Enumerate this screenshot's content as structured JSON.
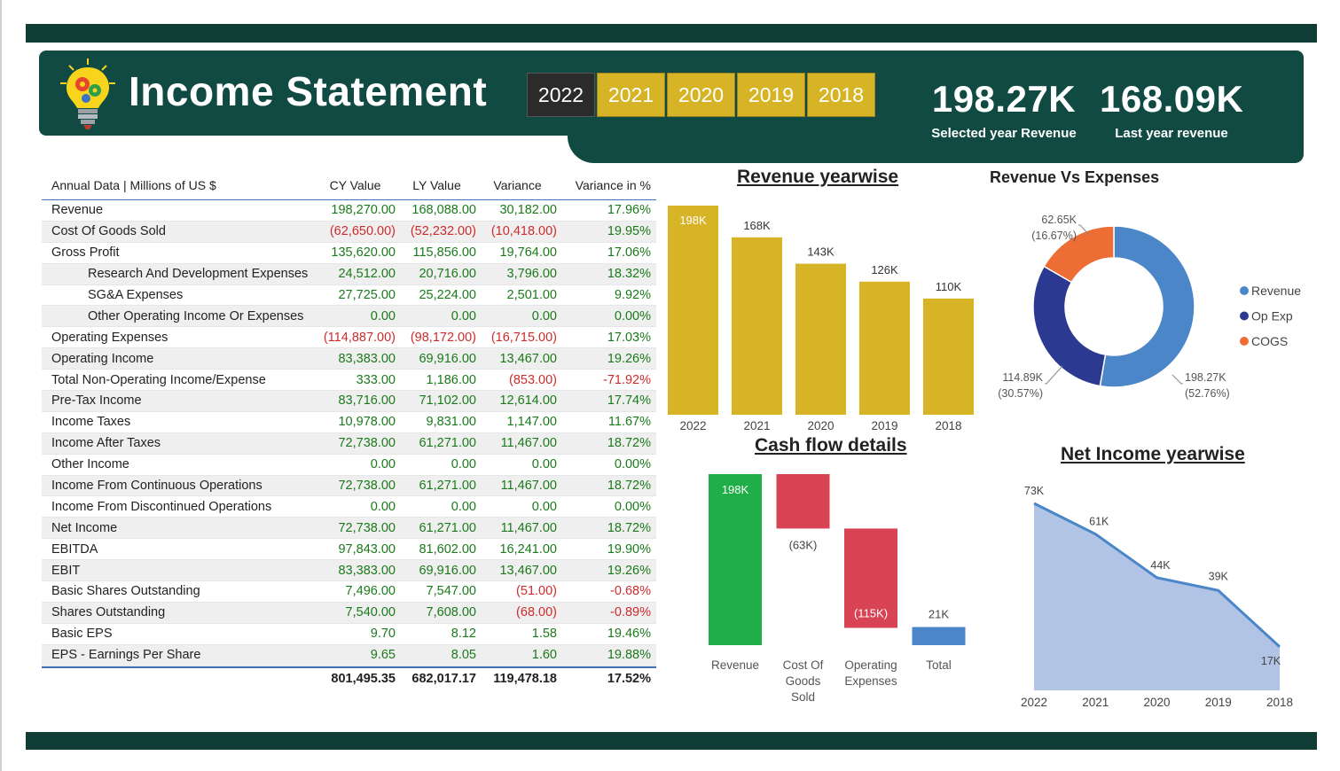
{
  "header": {
    "title": "Income Statement",
    "years": [
      "2022",
      "2021",
      "2020",
      "2019",
      "2018"
    ],
    "selected_year": "2022",
    "kpis": [
      {
        "value": "198.27K",
        "label": "Selected year Revenue"
      },
      {
        "value": "168.09K",
        "label": "Last year revenue"
      }
    ]
  },
  "table": {
    "headers": [
      "Annual Data | Millions of US $",
      "CY Value",
      "LY Value",
      "Variance",
      "Variance in %"
    ],
    "rows": [
      {
        "name": "Revenue",
        "indent": false,
        "cy": "198,270.00",
        "ly": "168,088.00",
        "var": "30,182.00",
        "pct": "17.96%"
      },
      {
        "name": "Cost Of Goods Sold",
        "indent": false,
        "cy": "(62,650.00)",
        "ly": "(52,232.00)",
        "var": "(10,418.00)",
        "pct": "19.95%"
      },
      {
        "name": "Gross Profit",
        "indent": false,
        "cy": "135,620.00",
        "ly": "115,856.00",
        "var": "19,764.00",
        "pct": "17.06%"
      },
      {
        "name": "Research And Development Expenses",
        "indent": true,
        "cy": "24,512.00",
        "ly": "20,716.00",
        "var": "3,796.00",
        "pct": "18.32%"
      },
      {
        "name": "SG&A Expenses",
        "indent": true,
        "cy": "27,725.00",
        "ly": "25,224.00",
        "var": "2,501.00",
        "pct": "9.92%"
      },
      {
        "name": "Other Operating Income Or Expenses",
        "indent": true,
        "cy": "0.00",
        "ly": "0.00",
        "var": "0.00",
        "pct": "0.00%"
      },
      {
        "name": "Operating Expenses",
        "indent": false,
        "cy": "(114,887.00)",
        "ly": "(98,172.00)",
        "var": "(16,715.00)",
        "pct": "17.03%"
      },
      {
        "name": "Operating Income",
        "indent": false,
        "cy": "83,383.00",
        "ly": "69,916.00",
        "var": "13,467.00",
        "pct": "19.26%"
      },
      {
        "name": "Total Non-Operating Income/Expense",
        "indent": false,
        "cy": "333.00",
        "ly": "1,186.00",
        "var": "(853.00)",
        "pct": "-71.92%"
      },
      {
        "name": "Pre-Tax Income",
        "indent": false,
        "cy": "83,716.00",
        "ly": "71,102.00",
        "var": "12,614.00",
        "pct": "17.74%"
      },
      {
        "name": "Income Taxes",
        "indent": false,
        "cy": "10,978.00",
        "ly": "9,831.00",
        "var": "1,147.00",
        "pct": "11.67%"
      },
      {
        "name": "Income After Taxes",
        "indent": false,
        "cy": "72,738.00",
        "ly": "61,271.00",
        "var": "11,467.00",
        "pct": "18.72%"
      },
      {
        "name": "Other Income",
        "indent": false,
        "cy": "0.00",
        "ly": "0.00",
        "var": "0.00",
        "pct": "0.00%"
      },
      {
        "name": "Income From Continuous Operations",
        "indent": false,
        "cy": "72,738.00",
        "ly": "61,271.00",
        "var": "11,467.00",
        "pct": "18.72%"
      },
      {
        "name": "Income From Discontinued Operations",
        "indent": false,
        "cy": "0.00",
        "ly": "0.00",
        "var": "0.00",
        "pct": "0.00%"
      },
      {
        "name": "Net Income",
        "indent": false,
        "cy": "72,738.00",
        "ly": "61,271.00",
        "var": "11,467.00",
        "pct": "18.72%"
      },
      {
        "name": "EBITDA",
        "indent": false,
        "cy": "97,843.00",
        "ly": "81,602.00",
        "var": "16,241.00",
        "pct": "19.90%"
      },
      {
        "name": "EBIT",
        "indent": false,
        "cy": "83,383.00",
        "ly": "69,916.00",
        "var": "13,467.00",
        "pct": "19.26%"
      },
      {
        "name": "Basic Shares Outstanding",
        "indent": false,
        "cy": "7,496.00",
        "ly": "7,547.00",
        "var": "(51.00)",
        "pct": "-0.68%"
      },
      {
        "name": "Shares Outstanding",
        "indent": false,
        "cy": "7,540.00",
        "ly": "7,608.00",
        "var": "(68.00)",
        "pct": "-0.89%"
      },
      {
        "name": "Basic EPS",
        "indent": false,
        "cy": "9.70",
        "ly": "8.12",
        "var": "1.58",
        "pct": "19.46%"
      },
      {
        "name": "EPS - Earnings Per Share",
        "indent": false,
        "cy": "9.65",
        "ly": "8.05",
        "var": "1.60",
        "pct": "19.88%"
      }
    ],
    "totals": {
      "cy": "801,495.35",
      "ly": "682,017.17",
      "var": "119,478.18",
      "pct": "17.52%"
    }
  },
  "colors": {
    "header_bg": "#104a43",
    "band": "#0f3d36",
    "gold": "#d6b425",
    "green": "#1fae48",
    "red": "#d94455",
    "blue": "#4a86c8",
    "navy": "#2b3990",
    "orange": "#ed6d34",
    "area": "#b1c4e6",
    "pos": "#1a7a1a",
    "neg": "#cf2b2b"
  },
  "chart_data": [
    {
      "id": "revenue",
      "type": "bar",
      "title": "Revenue yearwise",
      "categories": [
        "2022",
        "2021",
        "2020",
        "2019",
        "2018"
      ],
      "values": [
        198,
        168,
        143,
        126,
        110
      ],
      "labels": [
        "198K",
        "168K",
        "143K",
        "126K",
        "110K"
      ]
    },
    {
      "id": "pie",
      "type": "pie",
      "title": "Revenue Vs Expenses",
      "donut": true,
      "legend_position": "right",
      "slices": [
        {
          "name": "Revenue",
          "value": 198.27,
          "label": "198.27K",
          "pct": "(52.76%)",
          "color": "#4a86c8"
        },
        {
          "name": "Op Exp",
          "value": 114.89,
          "label": "114.89K",
          "pct": "(30.57%)",
          "color": "#2b3990"
        },
        {
          "name": "COGS",
          "value": 62.65,
          "label": "62.65K",
          "pct": "(16.67%)",
          "color": "#ed6d34"
        }
      ]
    },
    {
      "id": "cash",
      "type": "bar",
      "subtype": "waterfall",
      "title": "Cash flow details",
      "categories": [
        [
          "Revenue"
        ],
        [
          "Cost Of",
          "Goods",
          "Sold"
        ],
        [
          "Operating",
          "Expenses"
        ],
        [
          "Total"
        ]
      ],
      "values": [
        198,
        -63,
        -115,
        21
      ],
      "labels": [
        "198K",
        "(63K)",
        "(115K)",
        "21K"
      ]
    },
    {
      "id": "net",
      "type": "area",
      "title": "Net Income yearwise",
      "categories": [
        "2022",
        "2021",
        "2020",
        "2019",
        "2018"
      ],
      "values": [
        73,
        61,
        44,
        39,
        17
      ],
      "labels": [
        "73K",
        "61K",
        "44K",
        "39K",
        "17K"
      ]
    }
  ]
}
